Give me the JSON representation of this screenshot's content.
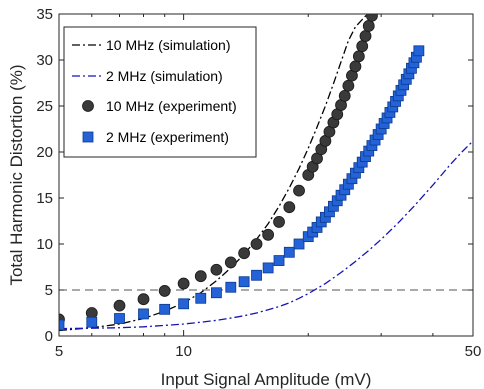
{
  "chart_data": {
    "type": "scatter",
    "xlabel": "Input Signal Amplitude (mV)",
    "ylabel": "Total Harmonic Distortion (%)",
    "xscale": "log",
    "xlim": [
      5,
      50
    ],
    "ylim": [
      0,
      35
    ],
    "xticks": [
      5,
      10,
      50
    ],
    "xtick_labels": [
      "5",
      "10",
      "50"
    ],
    "yticks": [
      0,
      5,
      10,
      15,
      20,
      25,
      30,
      35
    ],
    "ytick_labels": [
      "0",
      "5",
      "10",
      "15",
      "20",
      "25",
      "30",
      "35"
    ],
    "grid": false,
    "legend_position": "top-left",
    "reference_line": {
      "y": 5,
      "style": "dashed",
      "color": "#555555"
    },
    "series": [
      {
        "name": "10 MHz (simulation)",
        "kind": "line",
        "style": "dash-dot",
        "color": "#000000",
        "x": [
          5,
          6,
          7,
          8,
          9,
          10,
          11,
          12,
          13,
          14,
          15,
          16,
          17,
          18,
          19,
          20,
          21,
          22,
          23,
          24,
          25,
          26,
          27,
          27.8
        ],
        "y": [
          0.6,
          0.9,
          1.3,
          1.9,
          2.7,
          3.6,
          4.7,
          6.0,
          7.4,
          8.9,
          10.5,
          12.2,
          14.1,
          16.1,
          18.2,
          20.4,
          22.7,
          25.0,
          27.4,
          29.8,
          32.1,
          33.6,
          34.4,
          35
        ]
      },
      {
        "name": "2 MHz (simulation)",
        "kind": "line",
        "style": "dash-dot",
        "color": "#1515b8",
        "x": [
          5,
          6,
          7,
          8,
          9,
          10,
          11,
          12,
          13,
          14,
          15,
          16,
          17,
          18,
          19,
          20,
          22,
          24,
          26,
          28,
          30,
          33,
          36,
          40,
          44,
          47,
          50
        ],
        "y": [
          0.8,
          0.85,
          0.9,
          1.0,
          1.15,
          1.3,
          1.5,
          1.7,
          1.95,
          2.2,
          2.5,
          2.85,
          3.2,
          3.6,
          4.1,
          4.6,
          5.7,
          6.9,
          8.1,
          9.3,
          10.5,
          12.3,
          14.1,
          16.4,
          18.6,
          20.0,
          21.2
        ]
      },
      {
        "name": "10 MHz (experiment)",
        "kind": "marker",
        "marker": "circle",
        "color": "#3a3a3a",
        "x": [
          5,
          6,
          7,
          8,
          9,
          10,
          11,
          12,
          13,
          14,
          15,
          16,
          17,
          18,
          19,
          20,
          20.5,
          21,
          21.5,
          22,
          22.5,
          23,
          23.5,
          24,
          24.5,
          25,
          25.5,
          26,
          26.5,
          27,
          27.5,
          28,
          28.5
        ],
        "y": [
          1.8,
          2.5,
          3.3,
          4.0,
          4.9,
          5.7,
          6.5,
          7.2,
          8.0,
          9.0,
          10.0,
          11.0,
          12.4,
          14.0,
          15.8,
          17.5,
          18.4,
          19.3,
          20.3,
          21.2,
          22.2,
          23.2,
          24.1,
          25.1,
          26.1,
          27.2,
          28.3,
          29.3,
          30.4,
          31.5,
          32.6,
          33.7,
          34.8
        ]
      },
      {
        "name": "2 MHz (experiment)",
        "kind": "marker",
        "marker": "square",
        "color": "#2462d8",
        "x": [
          5,
          6,
          7,
          8,
          9,
          10,
          11,
          12,
          13,
          14,
          15,
          16,
          17,
          18,
          19,
          20,
          20.5,
          21,
          21.5,
          22,
          22.5,
          23,
          23.5,
          24,
          24.5,
          25,
          25.5,
          26,
          26.5,
          27,
          27.5,
          28,
          28.5,
          29,
          29.5,
          30,
          30.5,
          31,
          31.5,
          32,
          32.5,
          33,
          33.5,
          34,
          34.5,
          35,
          35.5,
          36,
          36.5,
          37
        ],
        "y": [
          1.2,
          1.5,
          1.9,
          2.4,
          2.9,
          3.5,
          4.1,
          4.7,
          5.3,
          5.9,
          6.6,
          7.4,
          8.2,
          9.1,
          10.0,
          10.8,
          11.3,
          11.8,
          12.4,
          12.9,
          13.5,
          14.1,
          14.7,
          15.3,
          15.9,
          16.5,
          17.1,
          17.7,
          18.3,
          18.9,
          19.5,
          20.1,
          20.7,
          21.3,
          21.9,
          22.5,
          23.1,
          23.7,
          24.3,
          24.9,
          25.5,
          26.1,
          26.7,
          27.3,
          27.9,
          28.5,
          29.1,
          29.7,
          30.3,
          31.0
        ]
      }
    ]
  }
}
